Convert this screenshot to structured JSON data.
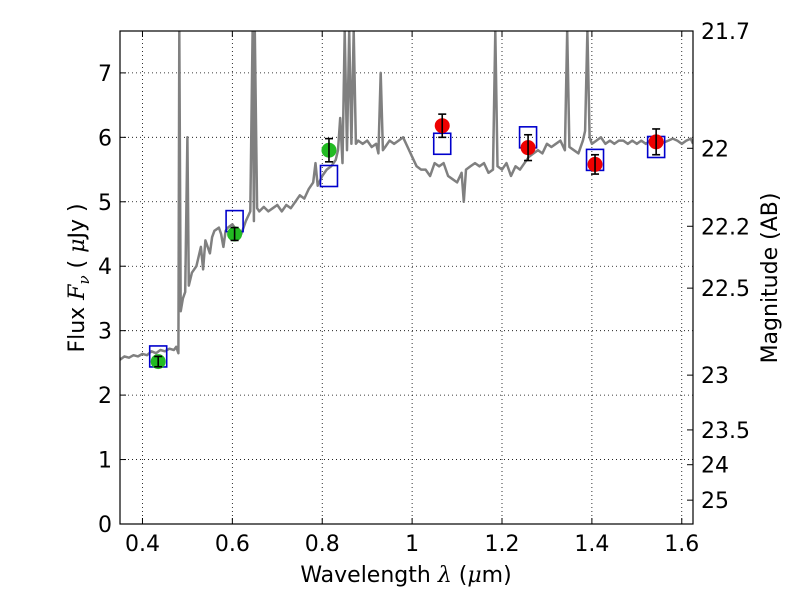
{
  "chart_data": {
    "type": "scatter",
    "title": "",
    "xlabel": {
      "pre": "Wavelength  ",
      "sym": "λ",
      "unit_pre": " (",
      "unit_sym": "μ",
      "unit_post": "m)"
    },
    "ylabel": {
      "pre": "Flux  ",
      "sym": "F",
      "sub": "ν",
      "unit_pre": "  ( ",
      "unit_sym": "μ",
      "unit_post": "Jy )"
    },
    "y2label": "Magnitude (AB)",
    "xlim": [
      0.35,
      1.625
    ],
    "ylim": [
      0,
      7.65
    ],
    "grid": true,
    "grid_style": "dotted",
    "x_ticks": [
      0.4,
      0.6,
      0.8,
      1.0,
      1.2,
      1.4,
      1.6
    ],
    "x_tick_labels": [
      "0.4",
      "0.6",
      "0.8",
      "1",
      "1.2",
      "1.4",
      "1.6"
    ],
    "y_ticks": [
      0,
      1,
      2,
      3,
      4,
      5,
      6,
      7
    ],
    "y_tick_labels": [
      "0",
      "1",
      "2",
      "3",
      "4",
      "5",
      "6",
      "7"
    ],
    "y2_ticks": [
      {
        "flux": 7.65,
        "label": "21.7"
      },
      {
        "flux": 5.83,
        "label": "22"
      },
      {
        "flux": 4.62,
        "label": "22.2"
      },
      {
        "flux": 3.66,
        "label": "22.5"
      },
      {
        "flux": 2.31,
        "label": "23"
      },
      {
        "flux": 1.46,
        "label": "23.5"
      },
      {
        "flux": 0.92,
        "label": "24"
      },
      {
        "flux": 0.37,
        "label": "25"
      }
    ],
    "spectrum": {
      "color": "#808080",
      "points": [
        [
          0.35,
          2.55
        ],
        [
          0.36,
          2.6
        ],
        [
          0.37,
          2.58
        ],
        [
          0.38,
          2.62
        ],
        [
          0.39,
          2.6
        ],
        [
          0.4,
          2.64
        ],
        [
          0.41,
          2.62
        ],
        [
          0.42,
          2.68
        ],
        [
          0.43,
          2.65
        ],
        [
          0.44,
          2.7
        ],
        [
          0.45,
          2.68
        ],
        [
          0.46,
          2.72
        ],
        [
          0.47,
          2.7
        ],
        [
          0.475,
          2.75
        ],
        [
          0.48,
          2.65
        ],
        [
          0.482,
          7.65
        ],
        [
          0.485,
          3.3
        ],
        [
          0.49,
          3.5
        ],
        [
          0.495,
          3.6
        ],
        [
          0.5,
          6.0
        ],
        [
          0.503,
          3.7
        ],
        [
          0.51,
          3.9
        ],
        [
          0.52,
          4.0
        ],
        [
          0.53,
          4.3
        ],
        [
          0.535,
          3.95
        ],
        [
          0.54,
          4.4
        ],
        [
          0.55,
          4.2
        ],
        [
          0.555,
          4.45
        ],
        [
          0.56,
          4.55
        ],
        [
          0.57,
          4.6
        ],
        [
          0.575,
          4.5
        ],
        [
          0.58,
          4.3
        ],
        [
          0.585,
          4.55
        ],
        [
          0.59,
          4.6
        ],
        [
          0.6,
          4.65
        ],
        [
          0.61,
          4.55
        ],
        [
          0.62,
          4.5
        ],
        [
          0.63,
          4.7
        ],
        [
          0.64,
          4.85
        ],
        [
          0.645,
          7.65
        ],
        [
          0.648,
          4.7
        ],
        [
          0.65,
          7.65
        ],
        [
          0.655,
          4.9
        ],
        [
          0.66,
          4.85
        ],
        [
          0.67,
          4.92
        ],
        [
          0.68,
          4.85
        ],
        [
          0.69,
          4.9
        ],
        [
          0.7,
          4.95
        ],
        [
          0.71,
          4.85
        ],
        [
          0.72,
          4.95
        ],
        [
          0.73,
          4.9
        ],
        [
          0.74,
          5.0
        ],
        [
          0.75,
          5.1
        ],
        [
          0.76,
          5.05
        ],
        [
          0.77,
          5.2
        ],
        [
          0.78,
          5.3
        ],
        [
          0.785,
          5.6
        ],
        [
          0.79,
          5.25
        ],
        [
          0.8,
          5.4
        ],
        [
          0.81,
          5.5
        ],
        [
          0.82,
          5.55
        ],
        [
          0.83,
          5.65
        ],
        [
          0.835,
          5.8
        ],
        [
          0.84,
          6.3
        ],
        [
          0.845,
          5.6
        ],
        [
          0.85,
          7.65
        ],
        [
          0.855,
          5.8
        ],
        [
          0.86,
          7.65
        ],
        [
          0.865,
          5.9
        ],
        [
          0.87,
          7.65
        ],
        [
          0.875,
          5.9
        ],
        [
          0.88,
          5.95
        ],
        [
          0.89,
          5.9
        ],
        [
          0.9,
          5.95
        ],
        [
          0.91,
          5.85
        ],
        [
          0.92,
          5.9
        ],
        [
          0.925,
          5.75
        ],
        [
          0.93,
          7.0
        ],
        [
          0.935,
          5.8
        ],
        [
          0.94,
          5.85
        ],
        [
          0.95,
          5.95
        ],
        [
          0.96,
          5.9
        ],
        [
          0.97,
          5.95
        ],
        [
          0.98,
          6.0
        ],
        [
          0.99,
          5.85
        ],
        [
          1.0,
          5.7
        ],
        [
          1.01,
          5.55
        ],
        [
          1.02,
          5.5
        ],
        [
          1.03,
          5.5
        ],
        [
          1.04,
          5.4
        ],
        [
          1.05,
          5.6
        ],
        [
          1.06,
          5.55
        ],
        [
          1.07,
          5.6
        ],
        [
          1.08,
          5.4
        ],
        [
          1.09,
          5.35
        ],
        [
          1.1,
          5.3
        ],
        [
          1.11,
          5.45
        ],
        [
          1.115,
          5.0
        ],
        [
          1.12,
          5.5
        ],
        [
          1.13,
          5.55
        ],
        [
          1.14,
          5.6
        ],
        [
          1.15,
          5.55
        ],
        [
          1.16,
          5.6
        ],
        [
          1.17,
          5.45
        ],
        [
          1.18,
          5.5
        ],
        [
          1.185,
          7.65
        ],
        [
          1.19,
          5.55
        ],
        [
          1.2,
          5.5
        ],
        [
          1.21,
          5.6
        ],
        [
          1.22,
          5.4
        ],
        [
          1.23,
          5.55
        ],
        [
          1.24,
          5.5
        ],
        [
          1.25,
          5.6
        ],
        [
          1.26,
          5.7
        ],
        [
          1.27,
          5.75
        ],
        [
          1.28,
          5.8
        ],
        [
          1.29,
          5.75
        ],
        [
          1.3,
          5.9
        ],
        [
          1.31,
          5.85
        ],
        [
          1.32,
          5.9
        ],
        [
          1.33,
          5.95
        ],
        [
          1.34,
          5.8
        ],
        [
          1.345,
          7.65
        ],
        [
          1.35,
          5.85
        ],
        [
          1.36,
          5.8
        ],
        [
          1.37,
          5.75
        ],
        [
          1.38,
          5.95
        ],
        [
          1.385,
          6.1
        ],
        [
          1.39,
          7.65
        ],
        [
          1.395,
          6.0
        ],
        [
          1.4,
          5.9
        ],
        [
          1.41,
          5.95
        ],
        [
          1.42,
          6.0
        ],
        [
          1.43,
          5.9
        ],
        [
          1.44,
          5.95
        ],
        [
          1.45,
          5.9
        ],
        [
          1.46,
          5.95
        ],
        [
          1.47,
          5.95
        ],
        [
          1.48,
          5.9
        ],
        [
          1.49,
          5.95
        ],
        [
          1.5,
          5.9
        ],
        [
          1.51,
          5.95
        ],
        [
          1.52,
          5.9
        ],
        [
          1.53,
          5.95
        ],
        [
          1.54,
          5.92
        ],
        [
          1.55,
          5.95
        ],
        [
          1.56,
          5.92
        ],
        [
          1.57,
          5.95
        ],
        [
          1.58,
          5.98
        ],
        [
          1.59,
          5.95
        ],
        [
          1.6,
          5.9
        ],
        [
          1.61,
          5.95
        ],
        [
          1.62,
          5.98
        ],
        [
          1.625,
          5.9
        ]
      ]
    },
    "model_points": {
      "marker": "open-square",
      "color": "#0000cc",
      "points": [
        [
          0.435,
          2.6
        ],
        [
          0.605,
          4.7
        ],
        [
          0.815,
          5.4
        ],
        [
          1.067,
          5.9
        ],
        [
          1.258,
          6.0
        ],
        [
          1.407,
          5.65
        ],
        [
          1.543,
          5.85
        ]
      ]
    },
    "observed_optical": {
      "marker": "filled-circle",
      "color": "#22bb22",
      "points": [
        {
          "x": 0.435,
          "y": 2.52,
          "err": 0.08
        },
        {
          "x": 0.605,
          "y": 4.5,
          "err": 0.1
        },
        {
          "x": 0.815,
          "y": 5.8,
          "err": 0.18
        }
      ]
    },
    "observed_nir": {
      "marker": "filled-circle",
      "color": "#ee0000",
      "points": [
        {
          "x": 1.067,
          "y": 6.18,
          "err": 0.18
        },
        {
          "x": 1.258,
          "y": 5.84,
          "err": 0.2
        },
        {
          "x": 1.407,
          "y": 5.58,
          "err": 0.15
        },
        {
          "x": 1.543,
          "y": 5.93,
          "err": 0.2
        }
      ]
    }
  }
}
